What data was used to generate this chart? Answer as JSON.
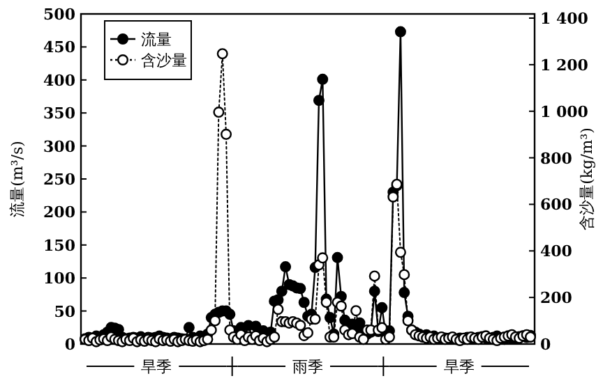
{
  "chart_data": {
    "type": "line",
    "ylabel": "流量(m³/s)",
    "y2label": "含沙量(kg/m³)",
    "categories": [
      null,
      null,
      null,
      null,
      null,
      null,
      null,
      null,
      null,
      null,
      null,
      null,
      null,
      null,
      null,
      null,
      null,
      null,
      null,
      null,
      null,
      null,
      null,
      null,
      null,
      null,
      null,
      null,
      null,
      null,
      null,
      null,
      null,
      null,
      null,
      null,
      null,
      null,
      null,
      null,
      null,
      null,
      null,
      null,
      null,
      null,
      null,
      null,
      null,
      null,
      null,
      null,
      null,
      null,
      null,
      null,
      null,
      null,
      null,
      null,
      null,
      null,
      null,
      null,
      null,
      null,
      null,
      null,
      null,
      null,
      null,
      null,
      null,
      null,
      null,
      null,
      null,
      null,
      null,
      null,
      null,
      null,
      null,
      null,
      null,
      null,
      null,
      null,
      null,
      null,
      null,
      null,
      null,
      null,
      null,
      null,
      null,
      null,
      null,
      null,
      null,
      null,
      null,
      null,
      null,
      null,
      null,
      null,
      null,
      null,
      null,
      null,
      null,
      null,
      null,
      null,
      null,
      null,
      null,
      null,
      null
    ],
    "series": [
      {
        "name": "流量",
        "color": "#000000",
        "line_style": "solid",
        "values": [
          8,
          10,
          9,
          12,
          10,
          14,
          18,
          25,
          24,
          22,
          10,
          8,
          9,
          10,
          9,
          11,
          8,
          10,
          9,
          10,
          12,
          10,
          9,
          8,
          10,
          9,
          8,
          7,
          25,
          10,
          8,
          12,
          10,
          15,
          40,
          45,
          48,
          50,
          50,
          45,
          20,
          15,
          25,
          12,
          28,
          10,
          27,
          15,
          20,
          12,
          18,
          65,
          67,
          80,
          117,
          90,
          88,
          85,
          84,
          63,
          42,
          45,
          116,
          369,
          401,
          68,
          40,
          15,
          131,
          72,
          36,
          25,
          30,
          25,
          32,
          20,
          15,
          18,
          80,
          19,
          55,
          15,
          20,
          230,
          240,
          473,
          78,
          42,
          21,
          18,
          15,
          12,
          14,
          10,
          12,
          8,
          10,
          9,
          8,
          10,
          7,
          9,
          8,
          10,
          9,
          8,
          10,
          11,
          9,
          8,
          10,
          12,
          9,
          7,
          10,
          8,
          9,
          11,
          12,
          10,
          13
        ]
      },
      {
        "name": "含沙量",
        "color": "#000000",
        "line_style": "dotted",
        "axis": "y2",
        "values": [
          20,
          15,
          25,
          10,
          18,
          22,
          15,
          30,
          20,
          15,
          10,
          20,
          15,
          25,
          10,
          18,
          12,
          20,
          15,
          10,
          22,
          15,
          18,
          12,
          20,
          10,
          15,
          20,
          15,
          12,
          18,
          10,
          15,
          20,
          60,
          100,
          996,
          1247,
          901,
          60,
          30,
          20,
          40,
          15,
          30,
          20,
          35,
          15,
          25,
          10,
          20,
          30,
          149,
          96,
          96,
          90,
          96,
          90,
          80,
          36,
          48,
          107,
          107,
          340,
          370,
          179,
          30,
          30,
          179,
          163,
          60,
          40,
          45,
          143,
          30,
          20,
          60,
          60,
          292,
          60,
          70,
          20,
          30,
          632,
          686,
          394,
          298,
          100,
          60,
          40,
          35,
          30,
          25,
          30,
          20,
          25,
          30,
          20,
          25,
          30,
          20,
          15,
          25,
          20,
          30,
          25,
          20,
          30,
          35,
          25,
          20,
          15,
          25,
          30,
          35,
          40,
          30,
          25,
          35,
          40,
          30
        ]
      }
    ],
    "ylim": [
      0,
      500
    ],
    "yticks": [
      0,
      50,
      100,
      150,
      200,
      250,
      300,
      350,
      400,
      450,
      500
    ],
    "y2lim": [
      0,
      1418
    ],
    "y2ticks": [
      0,
      200,
      400,
      600,
      800,
      {
        "value": 1000,
        "label": "1 000"
      },
      {
        "value": 1200,
        "label": "1 200"
      },
      {
        "value": 1400,
        "label": "1 400"
      }
    ],
    "marker": "circle",
    "legend": "top left",
    "grid": false,
    "annotations": [
      "旱季",
      "雨季",
      "旱季"
    ]
  }
}
